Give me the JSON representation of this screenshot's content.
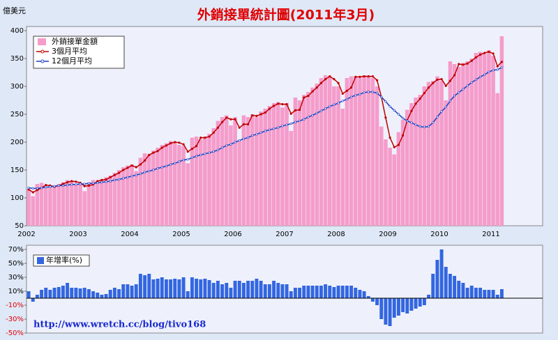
{
  "chart_data": [
    {
      "type": "bar",
      "title": "外銷接單統計圖(2011年3月)",
      "y_label": "億美元",
      "categories": [
        "2002",
        null,
        null,
        null,
        null,
        null,
        null,
        null,
        null,
        null,
        null,
        null,
        "2003",
        null,
        null,
        null,
        null,
        null,
        null,
        null,
        null,
        null,
        null,
        null,
        "2004",
        null,
        null,
        null,
        null,
        null,
        null,
        null,
        null,
        null,
        null,
        null,
        "2005",
        null,
        null,
        null,
        null,
        null,
        null,
        null,
        null,
        null,
        null,
        null,
        "2006",
        null,
        null,
        null,
        null,
        null,
        null,
        null,
        null,
        null,
        null,
        null,
        "2007",
        null,
        null,
        null,
        null,
        null,
        null,
        null,
        null,
        null,
        null,
        null,
        "2008",
        null,
        null,
        null,
        null,
        null,
        null,
        null,
        null,
        null,
        null,
        null,
        "2009",
        null,
        null,
        null,
        null,
        null,
        null,
        null,
        null,
        null,
        null,
        null,
        "2010",
        null,
        null,
        null,
        null,
        null,
        null,
        null,
        null,
        null,
        null,
        null,
        "2011",
        null,
        null
      ],
      "series": [
        {
          "name": "外銷接單金額",
          "type": "bar",
          "color": "#f59ccb",
          "values": [
            115,
            103,
            125,
            127,
            118,
            120,
            122,
            125,
            128,
            132,
            130,
            125,
            125,
            112,
            128,
            132,
            130,
            133,
            137,
            140,
            145,
            150,
            155,
            158,
            160,
            148,
            172,
            180,
            178,
            185,
            190,
            195,
            198,
            202,
            200,
            195,
            193,
            162,
            208,
            210,
            205,
            210,
            215,
            225,
            238,
            245,
            248,
            230,
            245,
            202,
            248,
            245,
            250,
            245,
            255,
            260,
            265,
            270,
            272,
            262,
            270,
            220,
            280,
            275,
            285,
            290,
            298,
            305,
            315,
            320,
            318,
            300,
            300,
            260,
            315,
            318,
            318,
            315,
            320,
            318,
            315,
            300,
            228,
            205,
            190,
            178,
            218,
            240,
            258,
            270,
            280,
            285,
            300,
            308,
            310,
            318,
            310,
            275,
            345,
            340,
            335,
            342,
            345,
            350,
            360,
            362,
            358,
            365,
            355,
            288,
            390
          ]
        },
        {
          "name": "3個月平均",
          "type": "line",
          "color": "#c00000",
          "values": [
            115,
            110,
            114,
            118,
            123,
            122,
            120,
            122,
            125,
            128,
            130,
            129,
            127,
            121,
            122,
            124,
            130,
            132,
            133,
            137,
            141,
            145,
            150,
            154,
            158,
            155,
            160,
            167,
            177,
            181,
            184,
            190,
            194,
            198,
            200,
            199,
            196,
            183,
            188,
            193,
            208,
            208,
            210,
            217,
            226,
            236,
            244,
            241,
            241,
            226,
            232,
            232,
            248,
            247,
            250,
            253,
            260,
            265,
            269,
            268,
            268,
            251,
            257,
            258,
            280,
            283,
            291,
            298,
            306,
            313,
            318,
            313,
            306,
            287,
            292,
            298,
            317,
            317,
            318,
            318,
            318,
            311,
            281,
            244,
            208,
            191,
            195,
            212,
            239,
            256,
            269,
            278,
            288,
            298,
            306,
            312,
            313,
            301,
            310,
            320,
            340,
            339,
            341,
            346,
            352,
            357,
            360,
            362,
            359,
            336,
            344
          ]
        },
        {
          "name": "12個月平均",
          "type": "line",
          "color": "#1f3fc0",
          "values": [
            118,
            117,
            117,
            118,
            119,
            120,
            121,
            122,
            122,
            123,
            124,
            124,
            125,
            125,
            126,
            126,
            127,
            128,
            129,
            130,
            132,
            133,
            135,
            137,
            139,
            141,
            143,
            146,
            148,
            150,
            153,
            155,
            157,
            160,
            162,
            165,
            168,
            169,
            172,
            175,
            177,
            179,
            181,
            183,
            186,
            190,
            194,
            196,
            200,
            203,
            206,
            208,
            212,
            214,
            217,
            220,
            222,
            224,
            226,
            229,
            231,
            233,
            236,
            238,
            241,
            245,
            248,
            252,
            256,
            260,
            264,
            267,
            270,
            274,
            277,
            281,
            284,
            286,
            289,
            290,
            290,
            288,
            281,
            273,
            264,
            257,
            250,
            243,
            238,
            235,
            231,
            228,
            227,
            228,
            235,
            245,
            255,
            263,
            274,
            283,
            289,
            295,
            301,
            307,
            312,
            317,
            321,
            326,
            329,
            330,
            334
          ]
        }
      ],
      "ylim": [
        50,
        400
      ],
      "yticks": [
        50,
        100,
        150,
        200,
        250,
        300,
        350,
        400
      ]
    },
    {
      "type": "bar",
      "annotation": "http://www.wretch.cc/blog/tivo168",
      "series": [
        {
          "name": "年增率(%)",
          "color": "#3366e0",
          "values": [
            10,
            -5,
            5,
            12,
            15,
            12,
            15,
            16,
            18,
            22,
            15,
            15,
            14,
            15,
            13,
            10,
            8,
            5,
            6,
            12,
            15,
            13,
            20,
            20,
            18,
            20,
            35,
            33,
            35,
            27,
            28,
            30,
            27,
            27,
            28,
            27,
            30,
            10,
            30,
            28,
            27,
            28,
            26,
            22,
            25,
            20,
            22,
            15,
            25,
            25,
            22,
            25,
            25,
            28,
            25,
            20,
            20,
            25,
            22,
            20,
            20,
            10,
            15,
            15,
            18,
            18,
            18,
            18,
            18,
            20,
            18,
            16,
            18,
            18,
            18,
            18,
            15,
            12,
            10,
            3,
            -5,
            -10,
            -30,
            -38,
            -40,
            -28,
            -25,
            -20,
            -22,
            -18,
            -15,
            -12,
            -10,
            5,
            35,
            55,
            70,
            45,
            35,
            32,
            25,
            22,
            15,
            18,
            15,
            15,
            12,
            12,
            12,
            5,
            13
          ]
        }
      ],
      "ylim": [
        -50,
        70
      ],
      "yticks": [
        {
          "value": 70,
          "label": "70%"
        },
        {
          "value": 50,
          "label": "50%"
        },
        {
          "value": 30,
          "label": "30%"
        },
        {
          "value": 10,
          "label": "10%"
        },
        {
          "value": -10,
          "label": "-10%"
        },
        {
          "value": -30,
          "label": "-30%"
        },
        {
          "value": -50,
          "label": "-50%"
        }
      ],
      "negative_label_color": "#e00000"
    }
  ]
}
